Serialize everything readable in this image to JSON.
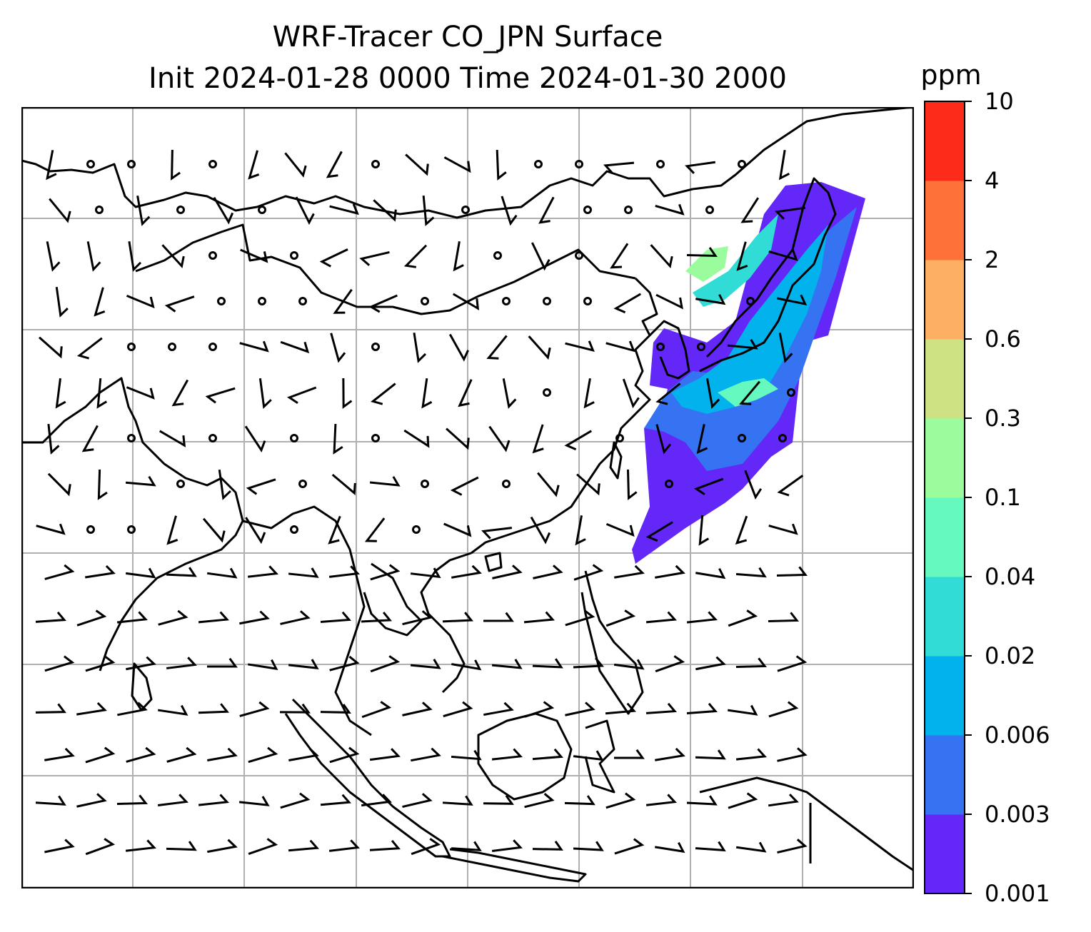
{
  "title_line1": "WRF-Tracer CO_JPN Surface",
  "title_line2": "Init 2024-01-28 0000 Time 2024-01-30 2000",
  "colorbar": {
    "unit": "ppm",
    "levels": [
      "0.001",
      "0.003",
      "0.006",
      "0.02",
      "0.04",
      "0.1",
      "0.3",
      "0.6",
      "2",
      "4",
      "10"
    ],
    "colors": [
      "#6327f7",
      "#3573f3",
      "#02b2ec",
      "#31dbd6",
      "#66f9bf",
      "#9afc9c",
      "#cee183",
      "#fdb063",
      "#fe7138",
      "#fd2b1a"
    ]
  },
  "colors": {
    "coast": "#000000",
    "grid": "#b0b0b0",
    "frame": "#000000"
  }
}
